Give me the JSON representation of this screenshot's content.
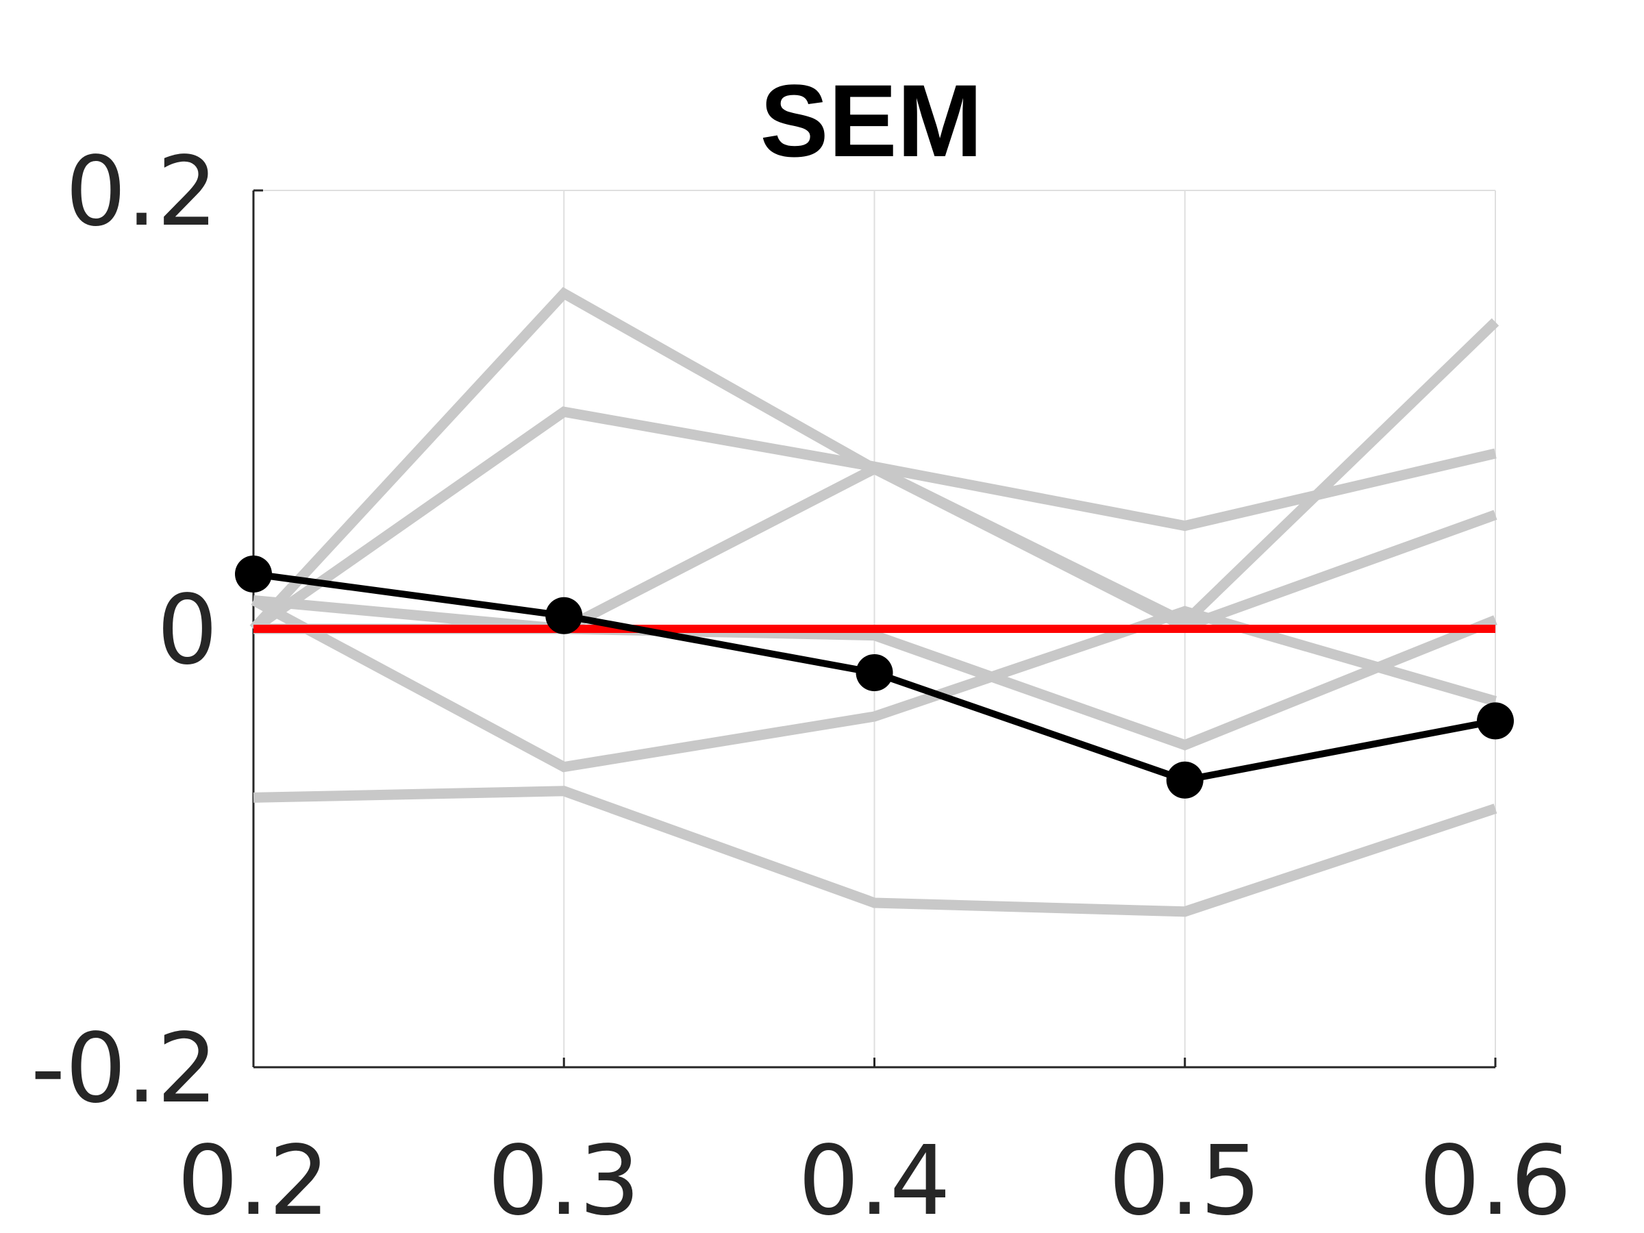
{
  "chart_data": {
    "type": "line",
    "title": "SEM",
    "xlabel": "",
    "ylabel": "",
    "x": [
      0.2,
      0.3,
      0.4,
      0.5,
      0.6
    ],
    "x_tick_labels": [
      "0.2",
      "0.3",
      "0.4",
      "0.5",
      "0.6"
    ],
    "xlim": [
      0.2,
      0.6
    ],
    "ylim": [
      -0.2,
      0.2
    ],
    "y_ticks": [
      -0.2,
      0,
      0.2
    ],
    "y_tick_labels": [
      "-0.2",
      "0",
      "0.2"
    ],
    "grid": "vertical",
    "reference_line": {
      "y": 0,
      "color": "#ff0000"
    },
    "background_series": [
      {
        "values": [
          0.0,
          0.153,
          0.073,
          0.003,
          0.14
        ]
      },
      {
        "values": [
          0.013,
          0.0,
          -0.003,
          -0.053,
          0.004
        ]
      },
      {
        "values": [
          0.0,
          0.099,
          0.074,
          0.047,
          0.08
        ]
      },
      {
        "values": [
          0.0,
          0.0,
          0.073,
          0.001,
          0.052
        ]
      },
      {
        "values": [
          0.013,
          -0.063,
          -0.04,
          0.008,
          -0.033
        ]
      },
      {
        "values": [
          -0.077,
          -0.074,
          -0.125,
          -0.129,
          -0.082
        ]
      }
    ],
    "main_series": {
      "values": [
        0.025,
        0.006,
        -0.02,
        -0.069,
        -0.042
      ],
      "markers": true
    },
    "colors": {
      "background": "#c8c8c8",
      "main": "#000000",
      "reference": "#ff0000",
      "grid": "#dfdfdf",
      "axis": "#262626"
    }
  }
}
